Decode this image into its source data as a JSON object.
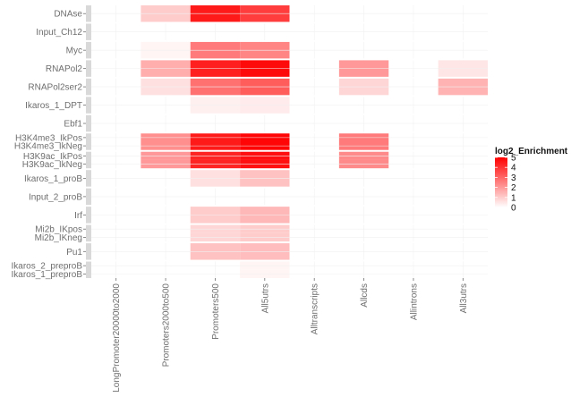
{
  "chart_data": {
    "type": "heatmap",
    "title": "",
    "xlabel": "",
    "ylabel": "",
    "x_categories": [
      "LongPromoter20000to2000",
      "Promoters2000to500",
      "Promoters500",
      "All5utrs",
      "Alltranscripts",
      "Allcds",
      "Allintrons",
      "All3utrs"
    ],
    "facets": [
      {
        "rows": [
          "DNAse"
        ]
      },
      {
        "rows": [
          "Input_Ch12"
        ]
      },
      {
        "rows": [
          "Myc"
        ]
      },
      {
        "rows": [
          "RNAPol2"
        ]
      },
      {
        "rows": [
          "RNAPol2ser2"
        ]
      },
      {
        "rows": [
          "Ikaros_1_DPT"
        ]
      },
      {
        "rows": [
          "Ebf1"
        ]
      },
      {
        "rows": [
          "H3K4me3_IkPos",
          "H3K4me3_IkNeg"
        ]
      },
      {
        "rows": [
          "H3K9ac_IkPos",
          "H3K9ac_IkNeg"
        ]
      },
      {
        "rows": [
          "Ikaros_1_proB"
        ]
      },
      {
        "rows": [
          "Input_2_proB"
        ]
      },
      {
        "rows": [
          "Irf"
        ]
      },
      {
        "rows": [
          "Mi2b_IKpos",
          "Mi2b_IKneg"
        ]
      },
      {
        "rows": [
          "Pu1"
        ]
      },
      {
        "rows": [
          "Ikaros_2_preproB",
          "Ikaros_1_preproB"
        ]
      }
    ],
    "values": {
      "DNAse": [
        0,
        1.0,
        4.5,
        3.8,
        0,
        0,
        0,
        0
      ],
      "Input_Ch12": [
        0,
        0,
        0,
        0,
        0,
        0,
        0,
        0
      ],
      "Myc": [
        0,
        0.2,
        2.6,
        2.4,
        0,
        0,
        0,
        0
      ],
      "RNAPol2": [
        0,
        1.6,
        4.4,
        4.8,
        0,
        2.0,
        0,
        0.5
      ],
      "RNAPol2ser2": [
        0,
        0.6,
        2.8,
        3.2,
        0,
        0.8,
        0,
        1.5
      ],
      "Ikaros_1_DPT": [
        0,
        0,
        0.3,
        0.4,
        0,
        0,
        0,
        0
      ],
      "Ebf1": [
        0,
        0,
        0,
        0,
        0,
        0,
        0,
        0
      ],
      "H3K4me3_IkPos": [
        0,
        2.2,
        4.5,
        4.9,
        0,
        2.6,
        0,
        0
      ],
      "H3K4me3_IkNeg": [
        0,
        2.2,
        4.5,
        4.9,
        0,
        2.6,
        0,
        0
      ],
      "H3K9ac_IkPos": [
        0,
        2.0,
        4.3,
        4.7,
        0,
        2.3,
        0,
        0
      ],
      "H3K9ac_IkNeg": [
        0,
        2.0,
        4.3,
        4.7,
        0,
        2.3,
        0,
        0
      ],
      "Ikaros_1_proB": [
        0,
        0,
        0.6,
        1.2,
        0,
        0,
        0,
        0
      ],
      "Input_2_proB": [
        0,
        0,
        0,
        0,
        0,
        0,
        0,
        0
      ],
      "Irf": [
        0,
        0,
        1.0,
        1.4,
        0,
        0,
        0,
        0
      ],
      "Mi2b_IKpos": [
        0,
        0,
        0.8,
        1.0,
        0,
        0,
        0,
        0
      ],
      "Mi2b_IKneg": [
        0,
        0,
        0.8,
        1.0,
        0,
        0,
        0,
        0
      ],
      "Pu1": [
        0,
        0,
        1.2,
        1.3,
        0,
        0,
        0,
        0
      ],
      "Ikaros_2_preproB": [
        0,
        0,
        0,
        0.2,
        0,
        0,
        0,
        0
      ],
      "Ikaros_1_preproB": [
        0,
        0,
        0,
        0.2,
        0,
        0,
        0,
        0
      ]
    },
    "legend": {
      "title": "log2_Enrichment",
      "breaks": [
        5,
        4,
        3,
        2,
        1,
        0
      ],
      "range": [
        0,
        5
      ],
      "low_color": "#ffffff",
      "high_color": "#ff0000",
      "placement": "right"
    }
  }
}
